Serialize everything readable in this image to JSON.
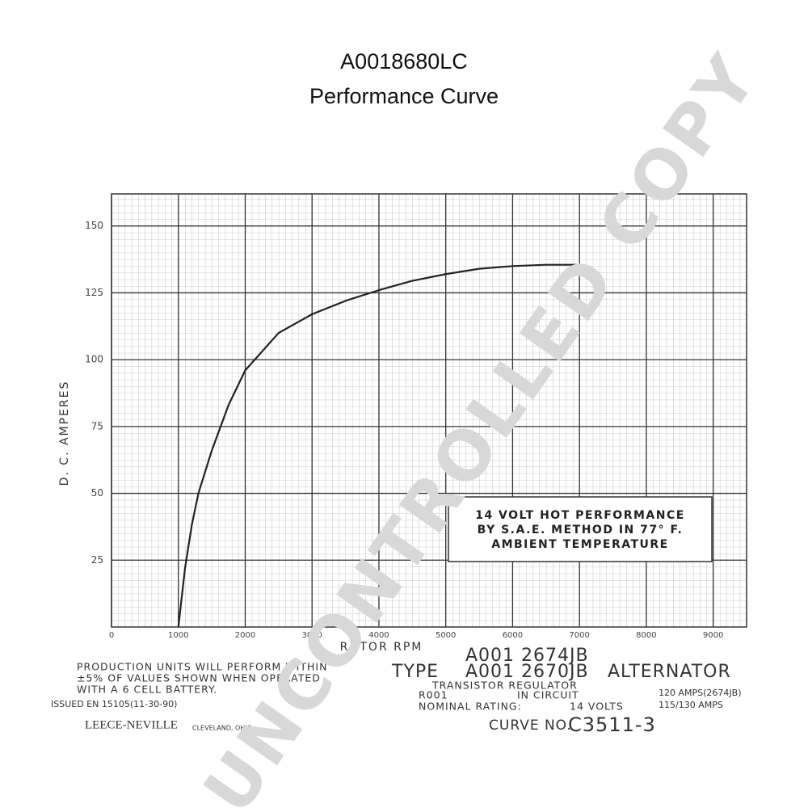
{
  "chart_data": {
    "type": "line",
    "title": "A0018680LC",
    "subtitle": "Performance Curve",
    "x_label": "ROTOR RPM",
    "y_label": "D. C. AMPERES",
    "x": [
      1000,
      1100,
      1200,
      1300,
      1500,
      1750,
      2000,
      2500,
      3000,
      3500,
      4000,
      4500,
      5000,
      5500,
      6000,
      6500,
      7000
    ],
    "series": [
      {
        "color": "#222222",
        "values": [
          0,
          22,
          38,
          50,
          66,
          83,
          96,
          110,
          117,
          122,
          126,
          129.5,
          132,
          134,
          135,
          135.5,
          135.5
        ]
      }
    ],
    "xlim": [
      0,
      9500
    ],
    "xticks": [
      0,
      1000,
      2000,
      3000,
      4000,
      5000,
      6000,
      7000,
      8000,
      9000
    ],
    "ylim": [
      0,
      162
    ],
    "yticks": [
      25,
      50,
      75,
      100,
      125,
      150
    ],
    "grid": true,
    "box_note": [
      "14 VOLT HOT PERFORMANCE",
      "BY S.A.E. METHOD IN 77° F.",
      "AMBIENT TEMPERATURE"
    ],
    "production_note": [
      "PRODUCTION UNITS WILL PERFORM WITHIN",
      "±5% OF VALUES SHOWN WHEN OPERATED",
      "WITH A 6 CELL BATTERY."
    ],
    "issued": "ISSUED EN 15105(11-30-90)",
    "maker": "LEECE-NEVILLE",
    "maker_city": "CLEVELAND, OHIO",
    "model_1": "A001 2674JB",
    "type_label": "TYPE",
    "model_2": "A001 2670JB",
    "product": "ALTERNATOR",
    "regulator": "TRANSISTOR REGULATOR",
    "regulator_code": "R001",
    "regulator_state": "IN CIRCUIT",
    "rating_label": "NOMINAL RATING:",
    "rating_volts": "14 VOLTS",
    "rating_amps": [
      "120 AMPS(2674JB)",
      "115/130 AMPS"
    ],
    "curve_label": "CURVE NO.",
    "curve_number": "C3511-3",
    "watermark": "UNCONTROLLED COPY"
  }
}
